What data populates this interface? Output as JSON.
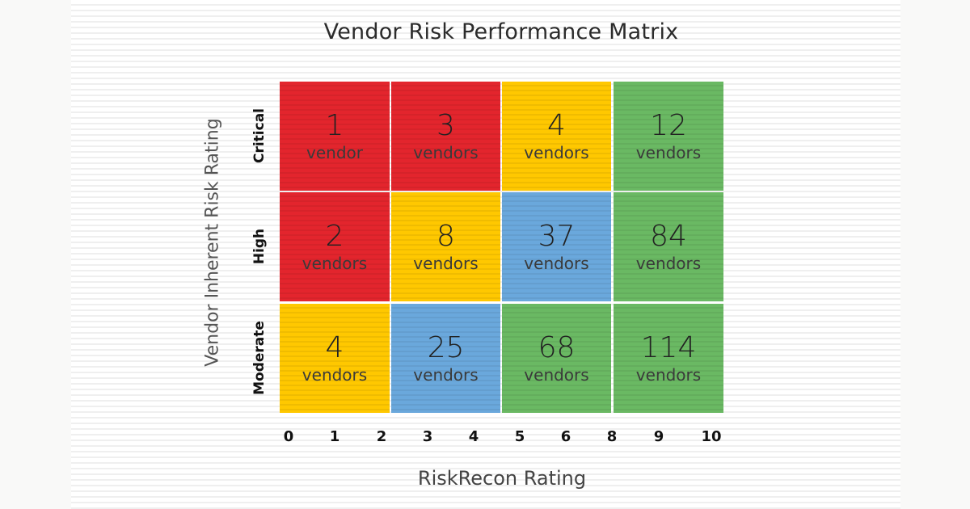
{
  "chart_data": {
    "type": "heatmap",
    "title": "Vendor Risk Performance Matrix",
    "xlabel": "RiskRecon Rating",
    "ylabel": "Vendor Inherent Risk Rating",
    "x_ticks": [
      "0",
      "1",
      "2",
      "3",
      "4",
      "5",
      "6",
      "8",
      "9",
      "10"
    ],
    "x_bins": [
      "0-2",
      "2-5",
      "5-8",
      "8-10"
    ],
    "y_categories": [
      "Critical",
      "High",
      "Moderate"
    ],
    "values": [
      [
        1,
        3,
        4,
        12
      ],
      [
        2,
        8,
        37,
        84
      ],
      [
        4,
        25,
        68,
        114
      ]
    ],
    "cell_colors": [
      [
        "#e3252d",
        "#e3252d",
        "#ffc800",
        "#6ab963"
      ],
      [
        "#e3252d",
        "#ffc800",
        "#6aa8dc",
        "#6ab963"
      ],
      [
        "#ffc800",
        "#6aa8dc",
        "#6ab963",
        "#6ab963"
      ]
    ],
    "grid": false,
    "legend": null
  },
  "cells": [
    [
      {
        "num": "1",
        "unit": "vendor",
        "color": "#e3252d"
      },
      {
        "num": "3",
        "unit": "vendors",
        "color": "#e3252d"
      },
      {
        "num": "4",
        "unit": "vendors",
        "color": "#ffc800"
      },
      {
        "num": "12",
        "unit": "vendors",
        "color": "#6ab963"
      }
    ],
    [
      {
        "num": "2",
        "unit": "vendors",
        "color": "#e3252d"
      },
      {
        "num": "8",
        "unit": "vendors",
        "color": "#ffc800"
      },
      {
        "num": "37",
        "unit": "vendors",
        "color": "#6aa8dc"
      },
      {
        "num": "84",
        "unit": "vendors",
        "color": "#6ab963"
      }
    ],
    [
      {
        "num": "4",
        "unit": "vendors",
        "color": "#ffc800"
      },
      {
        "num": "25",
        "unit": "vendors",
        "color": "#6aa8dc"
      },
      {
        "num": "68",
        "unit": "vendors",
        "color": "#6ab963"
      },
      {
        "num": "114",
        "unit": "vendors",
        "color": "#6ab963"
      }
    ]
  ],
  "row_labels": [
    "Critical",
    "High",
    "Moderate"
  ],
  "ticks": [
    "0",
    "1",
    "2",
    "3",
    "4",
    "5",
    "6",
    "8",
    "9",
    "10"
  ]
}
